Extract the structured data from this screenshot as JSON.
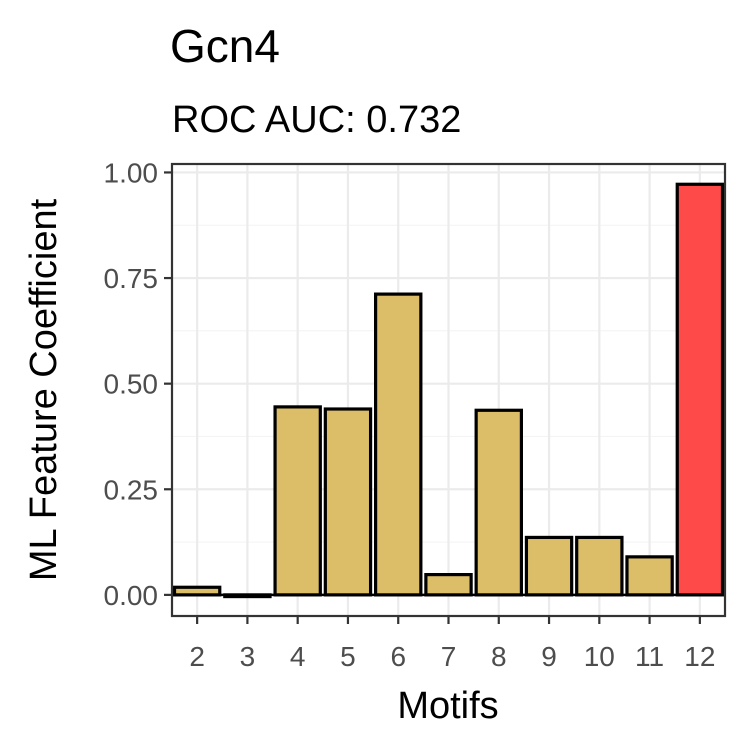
{
  "chart_data": {
    "type": "bar",
    "title": "Gcn4",
    "subtitle": "ROC AUC: 0.732",
    "xlabel": "Motifs",
    "ylabel": "ML Feature Coefficient",
    "categories": [
      "2",
      "3",
      "4",
      "5",
      "6",
      "7",
      "8",
      "9",
      "10",
      "11",
      "12"
    ],
    "values": [
      0.018,
      -0.004,
      0.445,
      0.44,
      0.712,
      0.048,
      0.437,
      0.136,
      0.136,
      0.09,
      0.972
    ],
    "ylim": [
      -0.05,
      1.02
    ],
    "yticks": [
      0.0,
      0.25,
      0.5,
      0.75,
      1.0
    ],
    "ytick_labels": [
      "0.00",
      "0.25",
      "0.50",
      "0.75",
      "1.00"
    ],
    "grid": true,
    "colors": {
      "default_bar": "#dcbe69",
      "highlight_bar": "#ff4a4a",
      "bar_outline": "#000000",
      "highlight_index": 10
    }
  }
}
